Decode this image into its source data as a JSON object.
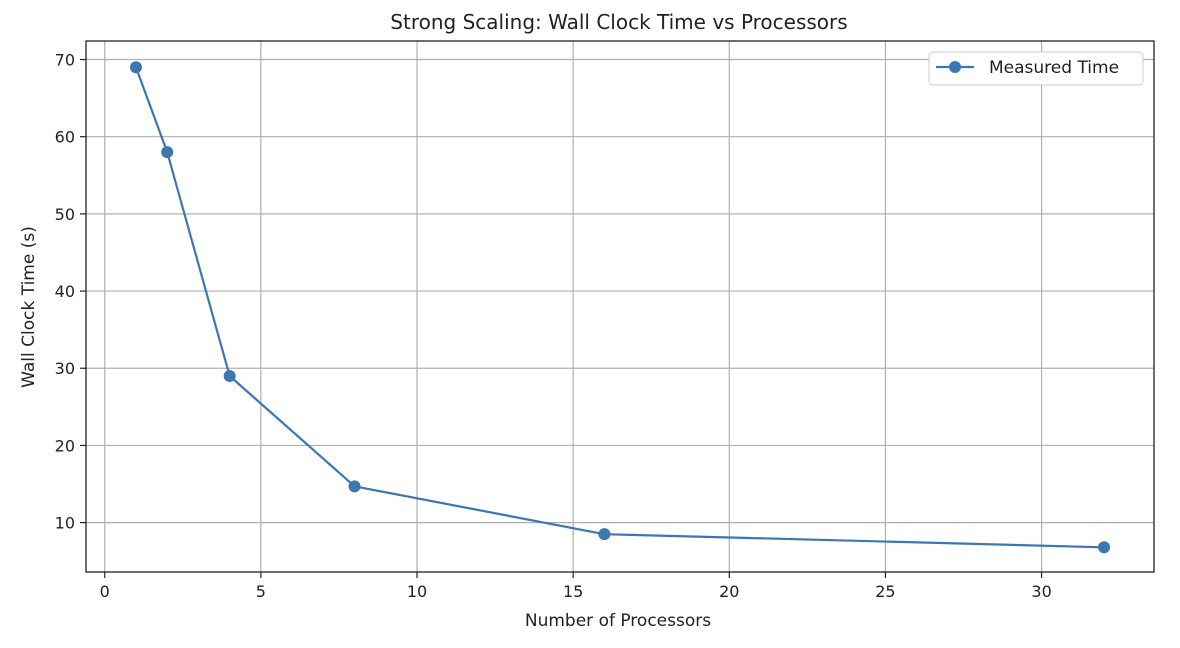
{
  "chart_data": {
    "type": "line",
    "title": "Strong Scaling: Wall Clock Time vs Processors",
    "xlabel": "Number of Processors",
    "ylabel": "Wall Clock Time (s)",
    "xlim": [
      -0.6,
      33.6
    ],
    "ylim": [
      3.6,
      72.4
    ],
    "xticks": [
      0,
      5,
      10,
      15,
      20,
      25,
      30
    ],
    "yticks": [
      10,
      20,
      30,
      40,
      50,
      60,
      70
    ],
    "grid": true,
    "legend_position": "top-right",
    "series": [
      {
        "name": "Measured Time",
        "color": "#3d76b3",
        "marker": "circle",
        "x": [
          1,
          2,
          4,
          8,
          16,
          32
        ],
        "y": [
          69.0,
          58.0,
          29.0,
          14.7,
          8.5,
          6.8
        ]
      }
    ]
  }
}
